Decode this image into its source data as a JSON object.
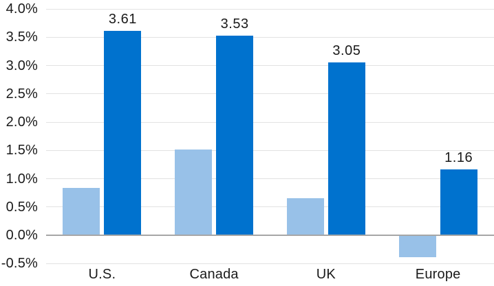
{
  "chart_data": {
    "type": "bar",
    "title": "",
    "xlabel": "",
    "ylabel": "",
    "categories": [
      "U.S.",
      "Canada",
      "UK",
      "Europe"
    ],
    "series": [
      {
        "name": "light-blue-series",
        "color": "#98C1E8",
        "values": [
          0.84,
          1.51,
          0.65,
          -0.39
        ],
        "values_are_estimated": true
      },
      {
        "name": "dark-blue-series",
        "color": "#0072CE",
        "values": [
          3.61,
          3.53,
          3.05,
          1.16
        ],
        "data_labels": [
          "3.61",
          "3.53",
          "3.05",
          "1.16"
        ]
      }
    ],
    "ylim": [
      -0.5,
      4.0
    ],
    "ytick_step": 0.5,
    "yticks": [
      {
        "value": 4.0,
        "label": "4.0%"
      },
      {
        "value": 3.5,
        "label": "3.5%"
      },
      {
        "value": 3.0,
        "label": "3.0%"
      },
      {
        "value": 2.5,
        "label": "2.5%"
      },
      {
        "value": 2.0,
        "label": "2.0%"
      },
      {
        "value": 1.5,
        "label": "1.5%"
      },
      {
        "value": 1.0,
        "label": "1.0%"
      },
      {
        "value": 0.5,
        "label": "0.5%"
      },
      {
        "value": 0.0,
        "label": "0.0%"
      },
      {
        "value": -0.5,
        "label": "-0.5%"
      }
    ],
    "grid": true,
    "legend": "none",
    "colors": {
      "bar_light": "#98C1E8",
      "bar_dark": "#0072CE",
      "gridline": "#e2e2e2",
      "zero_line": "#a6a6a6",
      "text": "#1a1a1a",
      "background": "#ffffff"
    }
  }
}
